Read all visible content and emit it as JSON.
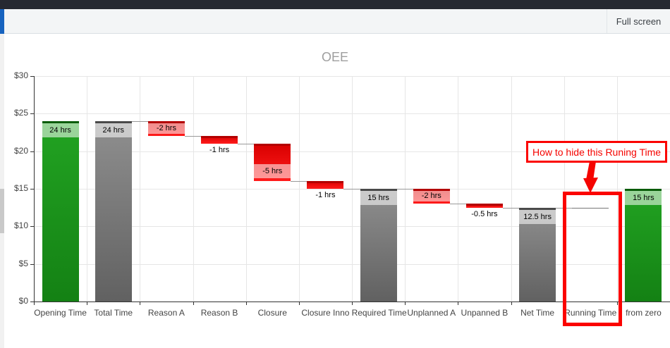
{
  "toolbar": {
    "full_screen_label": "Full screen"
  },
  "chart_data": {
    "type": "waterfall",
    "title": "OEE",
    "y_axis": {
      "min": 0,
      "max": 30,
      "tick_interval": 5,
      "tick_labels": [
        "$0",
        "$5",
        "$10",
        "$15",
        "$20",
        "$25",
        "$30"
      ],
      "tick_values": [
        0,
        5,
        10,
        15,
        20,
        25,
        30
      ]
    },
    "grid": "on",
    "categories": [
      "Opening Time",
      "Total Time",
      "Reason A",
      "Reason B",
      "Closure",
      "Closure Inno",
      "Required Time",
      "Unplanned A",
      "Unpanned B",
      "Net Time",
      "Running Time",
      "from zero"
    ],
    "bars": [
      {
        "category": "Opening Time",
        "label": "24 hrs",
        "start": 0,
        "end": 24,
        "color": "green",
        "label_pos": "top"
      },
      {
        "category": "Total Time",
        "label": "24 hrs",
        "start": 0,
        "end": 24,
        "color": "gray",
        "label_pos": "top"
      },
      {
        "category": "Reason A",
        "label": "-2 hrs",
        "start": 22,
        "end": 24,
        "color": "red",
        "label_pos": "fill"
      },
      {
        "category": "Reason B",
        "label": "-1 hrs",
        "start": 21,
        "end": 22,
        "color": "red",
        "label_pos": "below"
      },
      {
        "category": "Closure",
        "label": "-5 hrs",
        "start": 16,
        "end": 21,
        "color": "red",
        "label_pos": "bottom"
      },
      {
        "category": "Closure Inno",
        "label": "-1 hrs",
        "start": 15,
        "end": 16,
        "color": "red",
        "label_pos": "below"
      },
      {
        "category": "Required Time",
        "label": "15 hrs",
        "start": 0,
        "end": 15,
        "color": "gray",
        "label_pos": "top"
      },
      {
        "category": "Unplanned A",
        "label": "-2 hrs",
        "start": 13,
        "end": 15,
        "color": "red",
        "label_pos": "fill"
      },
      {
        "category": "Unpanned B",
        "label": "-0.5 hrs",
        "start": 12.5,
        "end": 13,
        "color": "red",
        "label_pos": "below"
      },
      {
        "category": "Net Time",
        "label": "12.5 hrs",
        "start": 0,
        "end": 12.5,
        "color": "gray",
        "label_pos": "top"
      },
      {
        "category": "Running Time",
        "label": "",
        "start": 12.5,
        "end": 12.5,
        "color": "hidden",
        "label_pos": "none"
      },
      {
        "category": "from zero",
        "label": "15 hrs",
        "start": 0,
        "end": 15,
        "color": "green",
        "label_pos": "top"
      }
    ],
    "connectors": [
      {
        "after_index": 1,
        "level": 24
      },
      {
        "after_index": 2,
        "level": 22
      },
      {
        "after_index": 3,
        "level": 21
      },
      {
        "after_index": 4,
        "level": 16
      },
      {
        "after_index": 5,
        "level": 15
      },
      {
        "after_index": 6,
        "level": 15
      },
      {
        "after_index": 7,
        "level": 13
      },
      {
        "after_index": 8,
        "level": 12.5
      },
      {
        "after_index": 9,
        "level": 12.5
      }
    ],
    "palette": {
      "green": {
        "body_top": "#22a322",
        "body_bottom": "#148114",
        "cap": "#0a5c0a"
      },
      "gray": {
        "body_top": "#8f8f8f",
        "body_bottom": "#616161",
        "cap": "#4a4a4a"
      },
      "red": {
        "body_top": "#d80000",
        "body_bottom": "#ff1c1c",
        "cap": "#b30000"
      },
      "hidden_line": "#777777",
      "band_overlay": "rgba(255,255,255,0.55)",
      "grid": "#e6e6e6",
      "axis": "#333333",
      "connector": "#999999",
      "title_color": "#9e9e9e",
      "tick_label_color": "#444444"
    }
  },
  "annotation": {
    "text": "How to hide this Runing Time",
    "color": "#f50400",
    "highlighted_category": "Running Time"
  }
}
